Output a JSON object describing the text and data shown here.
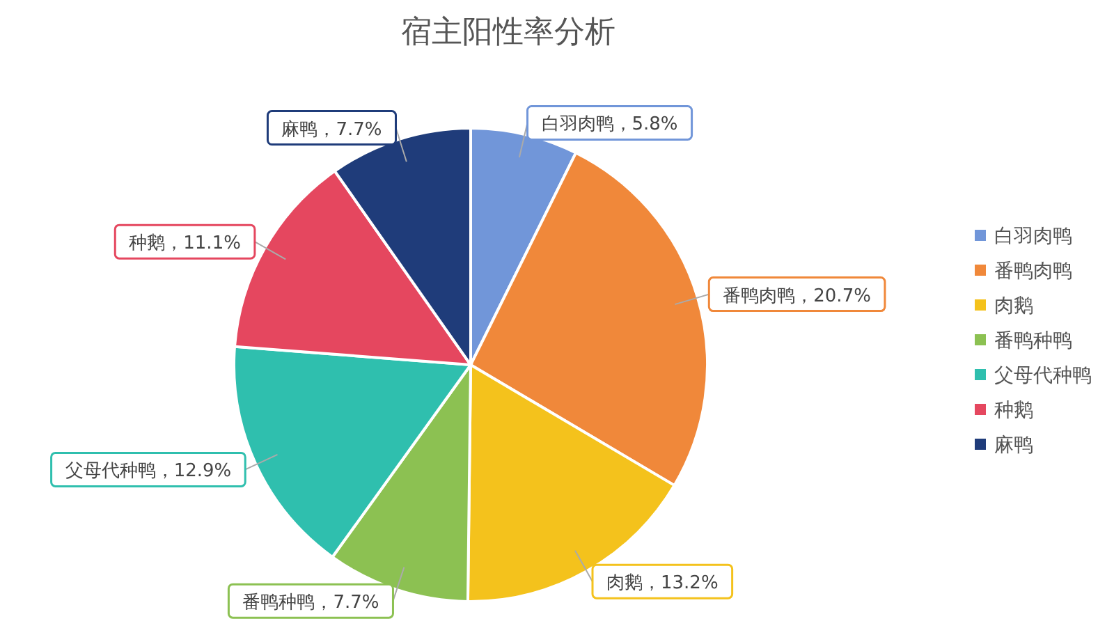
{
  "chart_data": {
    "type": "pie",
    "title": "宿主阳性率分析",
    "categories": [
      "白羽肉鸭",
      "番鸭肉鸭",
      "肉鹅",
      "番鸭种鸭",
      "父母代种鸭",
      "种鹅",
      "麻鸭"
    ],
    "values": [
      5.8,
      20.7,
      13.2,
      7.7,
      12.9,
      11.1,
      7.7
    ],
    "colors": [
      "#7196d9",
      "#f0883a",
      "#f4c21c",
      "#8cc152",
      "#2fbfae",
      "#e5475f",
      "#1f3c7a"
    ],
    "value_labels": [
      "白羽肉鸭，5.8%",
      "番鸭肉鸭，20.7%",
      "肉鹅，13.2%",
      "番鸭种鸭，7.7%",
      "父母代种鸭，12.9%",
      "种鹅，11.1%",
      "麻鸭，7.7%"
    ],
    "legend": "right"
  }
}
